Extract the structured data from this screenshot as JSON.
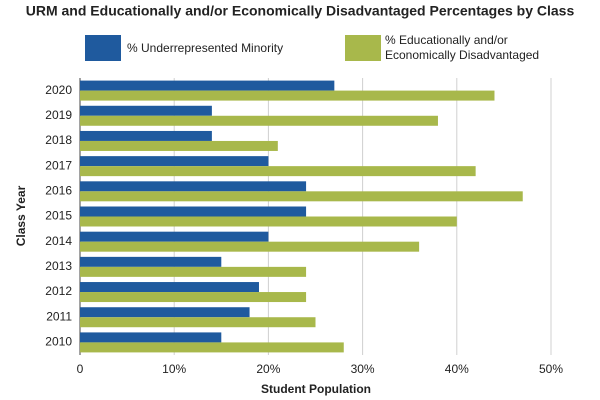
{
  "chart_data": {
    "type": "hbar",
    "title": "URM and Educationally and/or Economically Disadvantaged Percentages by Class",
    "x_label": "Student Population",
    "y_label": "Class Year",
    "categories": [
      "2020",
      "2019",
      "2018",
      "2017",
      "2016",
      "2015",
      "2014",
      "2013",
      "2012",
      "2011",
      "2010"
    ],
    "series": [
      {
        "name": "% Underrepresented Minority",
        "color": "#1f5a9e",
        "values": [
          27,
          14,
          14,
          20,
          24,
          24,
          20,
          15,
          19,
          18,
          15
        ]
      },
      {
        "name": "% Educationally and/or Economically Disadvantaged",
        "color": "#a8b84b",
        "values": [
          44,
          38,
          21,
          42,
          47,
          40,
          36,
          24,
          24,
          25,
          28
        ]
      }
    ],
    "xlim": [
      0,
      50
    ],
    "xticks": [
      {
        "value": 0,
        "label": "0"
      },
      {
        "value": 10,
        "label": "10%"
      },
      {
        "value": 20,
        "label": "20%"
      },
      {
        "value": 30,
        "label": "30%"
      },
      {
        "value": 40,
        "label": "40%"
      },
      {
        "value": 50,
        "label": "50%"
      }
    ],
    "grid": true
  }
}
